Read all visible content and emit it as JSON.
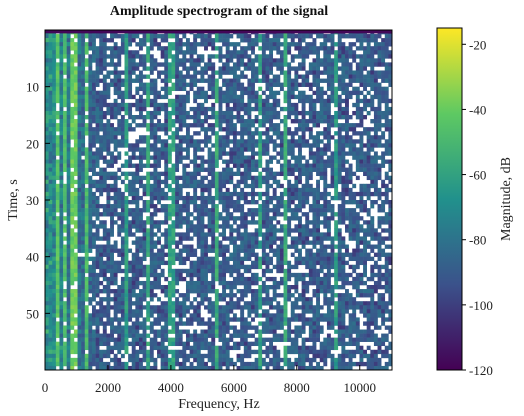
{
  "chart_data": {
    "type": "heatmap",
    "title": "Amplitude spectrogram of the signal",
    "xlabel": "Frequency, Hz",
    "ylabel": "Time, s",
    "xlim": [
      0,
      11025
    ],
    "ylim": [
      60,
      0
    ],
    "x_ticks": [
      0,
      2000,
      4000,
      6000,
      8000,
      10000
    ],
    "y_ticks": [
      10,
      20,
      30,
      40,
      50
    ],
    "colorbar": {
      "label": "Magnitude, dB",
      "range": [
        -120,
        -15
      ],
      "ticks": [
        -20,
        -40,
        -60,
        -80,
        -100,
        -120
      ],
      "colormap": [
        "#440154",
        "#3b528b",
        "#21918c",
        "#5ec962",
        "#fde725"
      ]
    },
    "cells": {
      "nx": 96,
      "ny": 84,
      "base_db": -92,
      "low_freq_boost_db": 28,
      "low_freq_extent_hz": 1800,
      "threshold_db": -95,
      "top_band_db": -118,
      "top_band_duration_s": 0.6,
      "vertical_lines": [
        {
          "freq_hz": 430,
          "level_db": -44
        },
        {
          "freq_hz": 600,
          "level_db": -46
        },
        {
          "freq_hz": 900,
          "level_db": -40
        },
        {
          "freq_hz": 1330,
          "level_db": -48
        },
        {
          "freq_hz": 2600,
          "level_db": -62
        },
        {
          "freq_hz": 3300,
          "level_db": -58
        },
        {
          "freq_hz": 4000,
          "level_db": -60
        },
        {
          "freq_hz": 5450,
          "level_db": -56
        },
        {
          "freq_hz": 6850,
          "level_db": -60
        },
        {
          "freq_hz": 7650,
          "level_db": -56
        },
        {
          "freq_hz": 9250,
          "level_db": -62
        }
      ]
    }
  }
}
